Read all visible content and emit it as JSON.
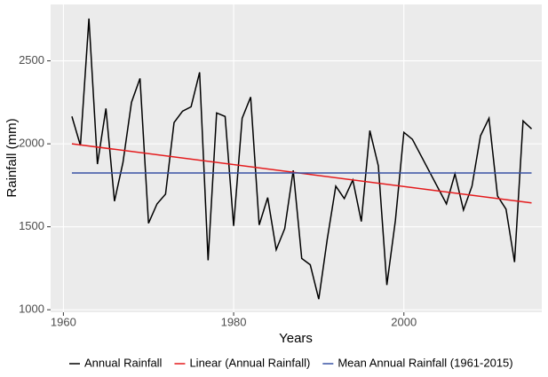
{
  "chart_data": {
    "type": "line",
    "x_label": "Years",
    "y_label": "Rainfall (mm)",
    "xlim": [
      1958.5,
      2016.2
    ],
    "ylim": [
      985,
      2840
    ],
    "xticks": [
      1960,
      1980,
      2000
    ],
    "yticks": [
      1000,
      1500,
      2000,
      2500
    ],
    "grid": true,
    "legend": "bottom",
    "series": [
      {
        "name": "Annual Rainfall",
        "color": "#000000",
        "x": [
          1961,
          1962,
          1963,
          1964,
          1965,
          1966,
          1967,
          1968,
          1969,
          1970,
          1971,
          1972,
          1973,
          1974,
          1975,
          1976,
          1977,
          1978,
          1979,
          1980,
          1981,
          1982,
          1983,
          1984,
          1985,
          1986,
          1987,
          1988,
          1989,
          1990,
          1991,
          1992,
          1993,
          1994,
          1995,
          1996,
          1997,
          1998,
          1999,
          2000,
          2001,
          2005,
          2006,
          2007,
          2008,
          2009,
          2010,
          2011,
          2012,
          2013,
          2014,
          2015
        ],
        "values": [
          2165,
          1990,
          2755,
          1878,
          2213,
          1654,
          1888,
          2250,
          2394,
          1521,
          1638,
          1697,
          2128,
          2197,
          2223,
          2431,
          1298,
          2186,
          2165,
          1505,
          2154,
          2282,
          1511,
          1676,
          1362,
          1489,
          1840,
          1309,
          1271,
          1064,
          1426,
          1745,
          1670,
          1782,
          1532,
          2080,
          1867,
          1149,
          1537,
          2069,
          2027,
          1638,
          1819,
          1601,
          1745,
          2048,
          2154,
          1686,
          1606,
          1287,
          2138,
          2090
        ]
      },
      {
        "name": "Linear (Annual Rainfall)",
        "color": "#e41a1c",
        "x": [
          1961,
          2015
        ],
        "values": [
          2000,
          1644
        ]
      },
      {
        "name": "Mean Annual Rainfall (1961-2015)",
        "color": "#3953a4",
        "x": [
          1961,
          2015
        ],
        "values": [
          1824,
          1824
        ]
      }
    ]
  }
}
